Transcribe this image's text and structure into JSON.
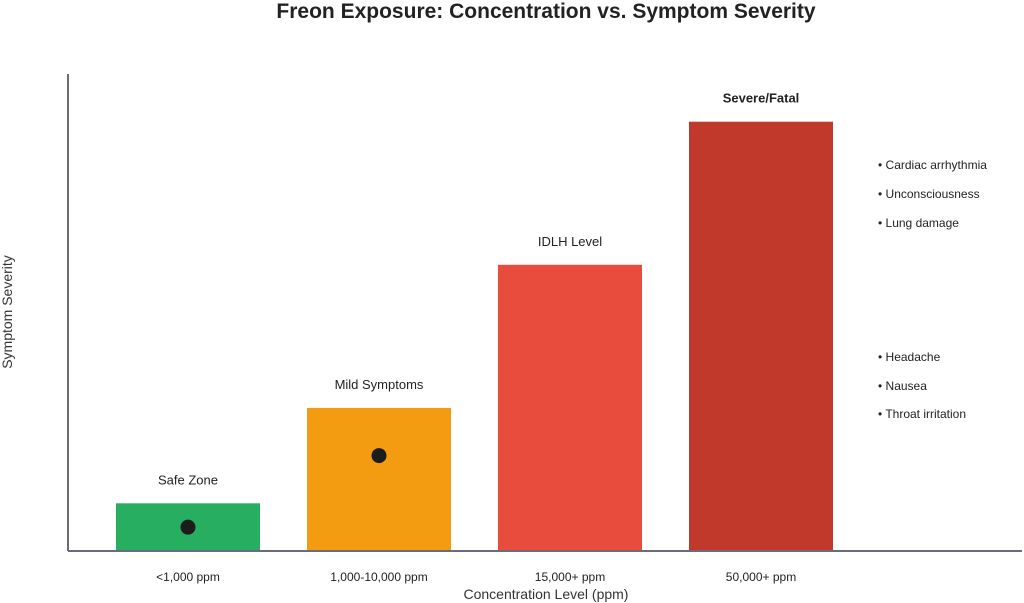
{
  "chart_data": {
    "type": "bar",
    "title": "Freon Exposure: Concentration vs. Symptom Severity",
    "xlabel": "Concentration Level (ppm)",
    "ylabel": "Symptom Severity",
    "categories": [
      "<1,000 ppm",
      "1,000-10,000 ppm",
      "15,000+ ppm",
      "50,000+ ppm"
    ],
    "values": [
      1,
      3,
      6,
      9
    ],
    "ylim": [
      0,
      10
    ],
    "y_ticks_shown": false,
    "grid": false,
    "bar_labels": [
      "Safe Zone",
      "Mild Symptoms",
      "IDLH Level",
      "Severe/Fatal"
    ],
    "bar_label_bold": [
      false,
      false,
      false,
      true
    ],
    "colors": [
      "#27ae60",
      "#f39c12",
      "#e74c3c",
      "#c0392b"
    ],
    "markers": [
      {
        "category": "<1,000 ppm",
        "y": 0.5
      },
      {
        "category": "1,000-10,000 ppm",
        "y": 2
      }
    ],
    "marker_color": "#1c1c1c",
    "annotations": {
      "severe_symptoms": [
        "• Cardiac arrhythmia",
        "• Unconsciousness",
        "• Lung damage"
      ],
      "mild_symptoms": [
        "• Headache",
        "• Nausea",
        "• Throat irritation"
      ]
    },
    "axis_color": "#6b6b7b"
  }
}
